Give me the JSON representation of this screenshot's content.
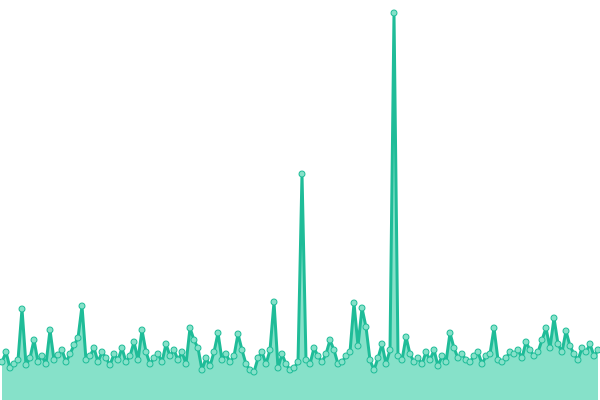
{
  "chart_data": {
    "type": "area",
    "values": [
      38,
      48,
      32,
      36,
      40,
      91,
      35,
      42,
      60,
      38,
      44,
      36,
      70,
      40,
      45,
      50,
      38,
      46,
      55,
      62,
      94,
      40,
      44,
      52,
      38,
      48,
      42,
      35,
      46,
      40,
      52,
      38,
      44,
      58,
      40,
      70,
      48,
      36,
      42,
      46,
      38,
      56,
      44,
      50,
      40,
      48,
      36,
      72,
      60,
      52,
      30,
      42,
      34,
      48,
      67,
      40,
      46,
      38,
      44,
      66,
      50,
      36,
      30,
      28,
      42,
      48,
      36,
      50,
      98,
      32,
      46,
      36,
      30,
      32,
      38,
      226,
      40,
      36,
      52,
      44,
      38,
      46,
      60,
      50,
      36,
      38,
      44,
      48,
      97,
      54,
      92,
      73,
      40,
      30,
      42,
      56,
      36,
      50,
      387,
      44,
      40,
      63,
      46,
      38,
      42,
      36,
      48,
      40,
      50,
      34,
      44,
      38,
      67,
      52,
      42,
      46,
      40,
      38,
      44,
      48,
      36,
      44,
      46,
      72,
      40,
      38,
      42,
      48,
      46,
      50,
      42,
      58,
      50,
      44,
      48,
      60,
      72,
      52,
      82,
      56,
      48,
      69,
      54,
      46,
      40,
      52,
      48,
      56,
      44,
      50
    ],
    "ylim": [
      0,
      400
    ],
    "color": "#1fbc98",
    "fill": "#86e1c9"
  }
}
